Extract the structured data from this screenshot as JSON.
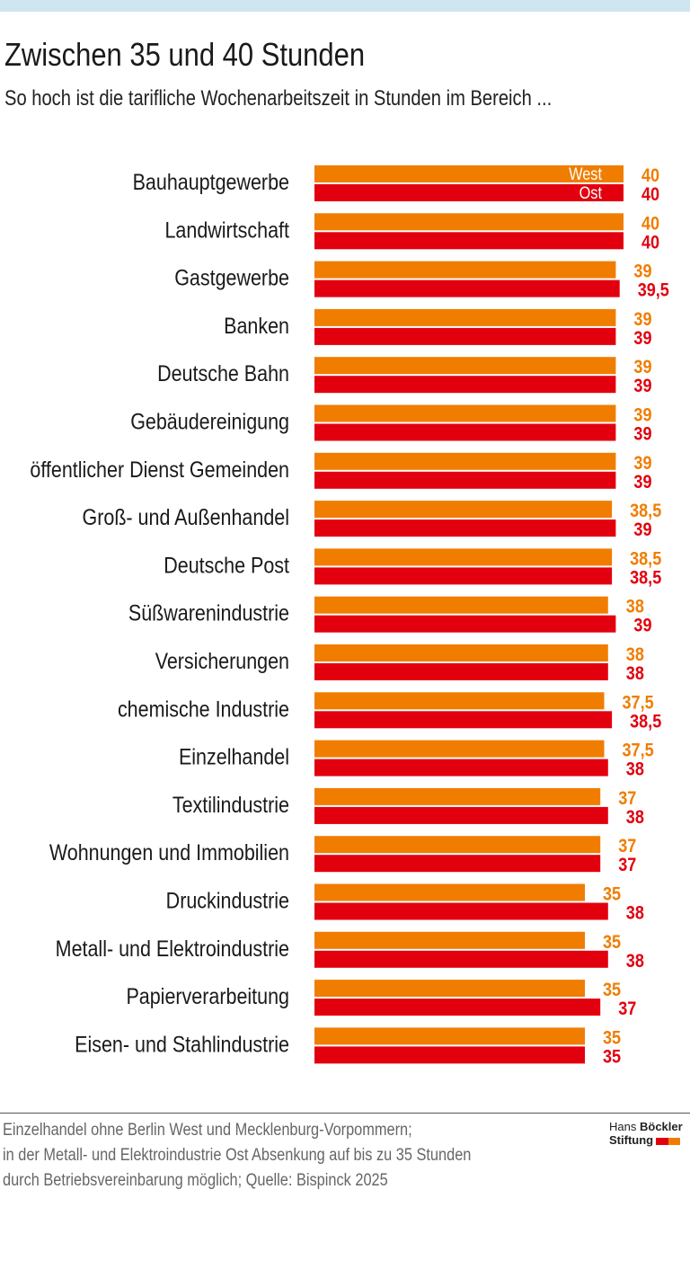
{
  "header": {
    "title": "Zwischen 35 und 40 Stunden",
    "subtitle": "So hoch ist die tarifliche Wochenarbeitszeit in Stunden im Bereich ..."
  },
  "chart_data": {
    "type": "bar",
    "orientation": "horizontal",
    "title": "Zwischen 35 und 40 Stunden",
    "subtitle": "So hoch ist die tarifliche Wochenarbeitszeit in Stunden im Bereich ...",
    "categories": [
      "Bauhauptgewerbe",
      "Landwirtschaft",
      "Gastgewerbe",
      "Banken",
      "Deutsche Bahn",
      "Gebäudereinigung",
      "öffentlicher Dienst Gemeinden",
      "Groß- und Außenhandel",
      "Deutsche Post",
      "Süßwarenindustrie",
      "Versicherungen",
      "chemische Industrie",
      "Einzelhandel",
      "Textilindustrie",
      "Wohnungen und Immobilien",
      "Druckindustrie",
      "Metall- und Elektroindustrie",
      "Papierverarbeitung",
      "Eisen- und Stahlindustrie"
    ],
    "series": [
      {
        "name": "West",
        "color": "#f07d00",
        "values": [
          40,
          40,
          39,
          39,
          39,
          39,
          39,
          38.5,
          38.5,
          38,
          38,
          37.5,
          37.5,
          37,
          37,
          35,
          35,
          35,
          35
        ],
        "labels": [
          "40",
          "40",
          "39",
          "39",
          "39",
          "39",
          "39",
          "38,5",
          "38,5",
          "38",
          "38",
          "37,5",
          "37,5",
          "37",
          "37",
          "35",
          "35",
          "35",
          "35"
        ]
      },
      {
        "name": "Ost",
        "color": "#e2000f",
        "values": [
          40,
          40,
          39.5,
          39,
          39,
          39,
          39,
          39,
          38.5,
          39,
          38,
          38.5,
          38,
          38,
          37,
          38,
          38,
          37,
          35
        ],
        "labels": [
          "40",
          "40",
          "39,5",
          "39",
          "39",
          "39",
          "39",
          "39",
          "38,5",
          "39",
          "38",
          "38,5",
          "38",
          "38",
          "37",
          "38",
          "38",
          "37",
          "35"
        ]
      }
    ],
    "xlim": [
      0,
      40
    ],
    "grid": false,
    "legend": "inside first bars"
  },
  "footer": {
    "lines": [
      "Einzelhandel ohne Berlin West und Mecklenburg-Vorpommern;",
      "in der Metall- und Elektroindustrie Ost Absenkung auf bis zu 35 Stunden",
      "durch Betriebsvereinbarung möglich; Quelle: Bispinck 2025"
    ]
  },
  "logo": {
    "line1a": "Hans",
    "line1b": "Böckler",
    "line2": "Stiftung"
  }
}
